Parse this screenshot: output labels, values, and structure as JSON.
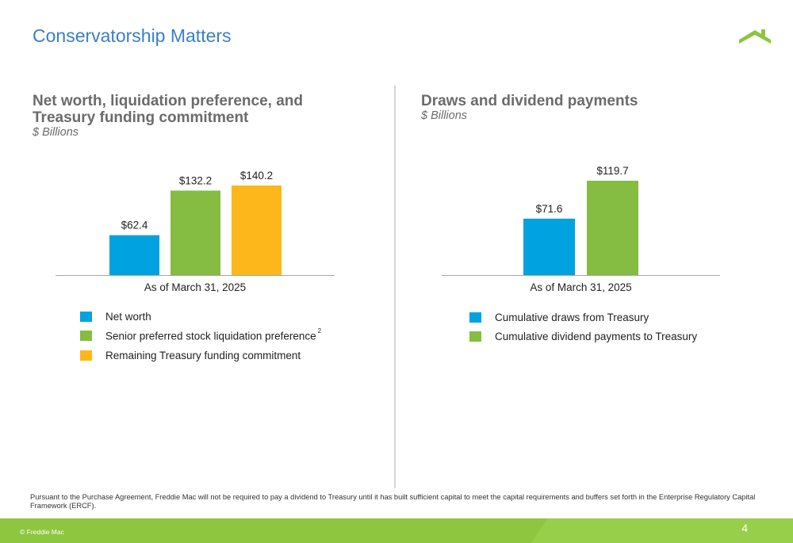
{
  "page": {
    "title": "Conservatorship Matters",
    "footnote": "Pursuant to the Purchase Agreement, Freddie Mac will not be required to pay a dividend to Treasury until it has built sufficient capital to meet the capital requirements and buffers set forth in the Enterprise Regulatory Capital Framework (ERCF).",
    "copyright": "© Freddie Mac",
    "page_number": "4",
    "logo_icon": "house-roof-icon"
  },
  "colors": {
    "blue": "#00a3e0",
    "green": "#84bd41",
    "yellow": "#fdb71a",
    "title_blue": "#3a7fc4",
    "footer_green": "#8dc63f"
  },
  "chart_data": [
    {
      "type": "bar",
      "title_line1": "Net worth, liquidation preference, and",
      "title_line2": "Treasury funding commitment",
      "subtitle": "$ Billions",
      "categories": [
        "As of March 31, 2025"
      ],
      "series": [
        {
          "name": "Net worth",
          "values": [
            62.4
          ],
          "label": "$62.4",
          "color": "#00a3e0",
          "footnote_ref": ""
        },
        {
          "name": "Senior preferred stock liquidation preference",
          "values": [
            132.2
          ],
          "label": "$132.2",
          "color": "#84bd41",
          "footnote_ref": "2"
        },
        {
          "name": "Remaining Treasury funding commitment",
          "values": [
            140.2
          ],
          "label": "$140.2",
          "color": "#fdb71a",
          "footnote_ref": ""
        }
      ],
      "ylim": [
        0,
        140.2
      ],
      "grid": false,
      "legend_position": "bottom"
    },
    {
      "type": "bar",
      "title_line1": "Draws and dividend payments",
      "subtitle": "$ Billions",
      "categories": [
        "As of March 31, 2025"
      ],
      "series": [
        {
          "name": "Cumulative draws from Treasury",
          "values": [
            71.6
          ],
          "label": "$71.6",
          "color": "#00a3e0"
        },
        {
          "name": "Cumulative dividend payments to Treasury",
          "values": [
            119.7
          ],
          "label": "$119.7",
          "color": "#84bd41"
        }
      ],
      "ylim": [
        0,
        119.7
      ],
      "grid": false,
      "legend_position": "bottom"
    }
  ]
}
